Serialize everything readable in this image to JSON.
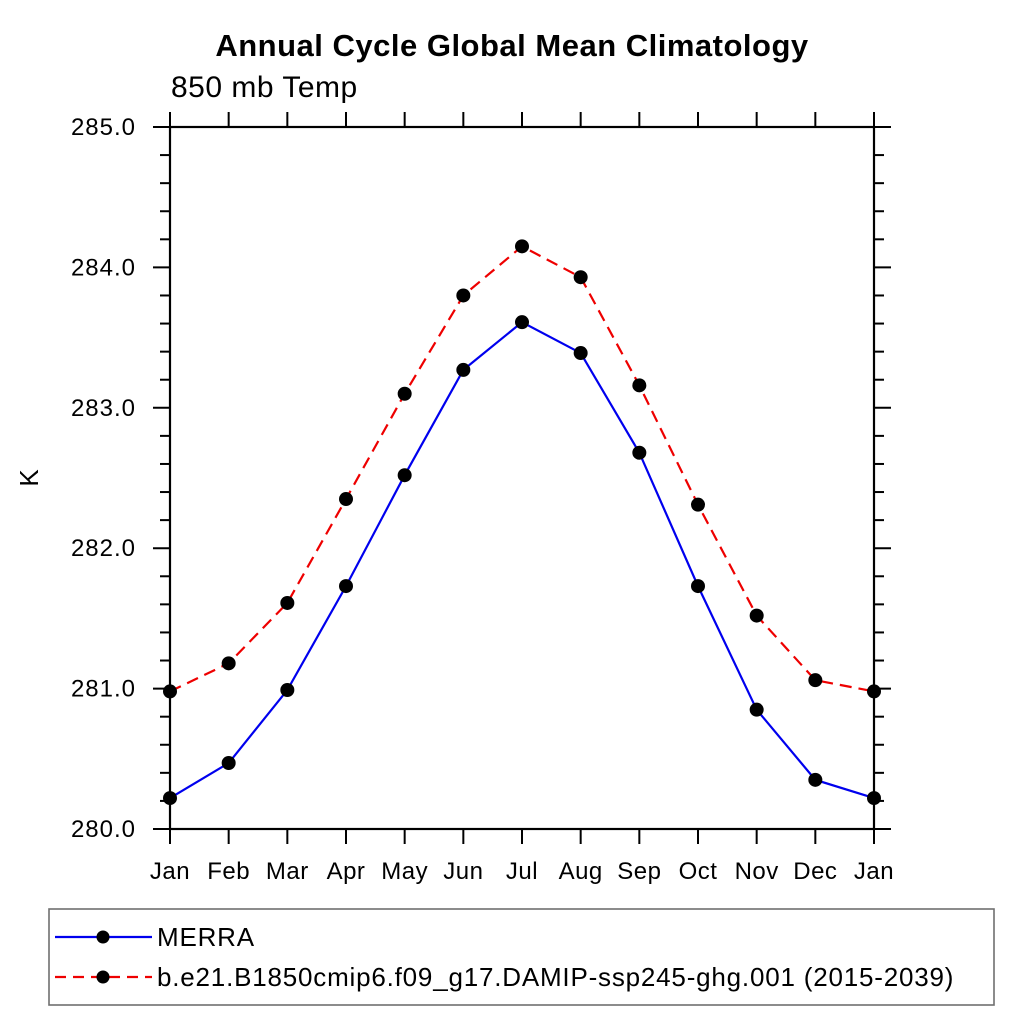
{
  "title": "Annual Cycle Global Mean Climatology",
  "subtitle": "850 mb Temp",
  "y_axis_title": "K",
  "chart_data": {
    "type": "line",
    "categories": [
      "Jan",
      "Feb",
      "Mar",
      "Apr",
      "May",
      "Jun",
      "Jul",
      "Aug",
      "Sep",
      "Oct",
      "Nov",
      "Dec",
      "Jan"
    ],
    "series": [
      {
        "name": "MERRA",
        "color": "#0000ee",
        "line_style": "solid",
        "marker": "filled-circle",
        "marker_color": "#000000",
        "values": [
          280.22,
          280.47,
          280.99,
          281.73,
          282.52,
          283.27,
          283.61,
          283.39,
          282.68,
          281.73,
          280.85,
          280.35,
          280.22
        ]
      },
      {
        "name": "b.e21.B1850cmip6.f09_g17.DAMIP-ssp245-ghg.001 (2015-2039)",
        "color": "#ee0000",
        "line_style": "dashed",
        "marker": "filled-circle",
        "marker_color": "#000000",
        "values": [
          280.98,
          281.18,
          281.61,
          282.35,
          283.1,
          283.8,
          284.15,
          283.93,
          283.16,
          282.31,
          281.52,
          281.06,
          280.98
        ]
      }
    ],
    "title": "Annual Cycle Global Mean Climatology",
    "subtitle": "850 mb Temp",
    "xlabel": "",
    "ylabel": "K",
    "ylim": [
      280.0,
      285.0
    ],
    "ytick_step": 1.0,
    "ytick_minor_step": 0.2,
    "ytick_labels": [
      "280.0",
      "281.0",
      "282.0",
      "283.0",
      "284.0",
      "285.0"
    ],
    "grid": false,
    "frame": "box-with-outward-ticks",
    "legend_position": "bottom-left-box"
  }
}
